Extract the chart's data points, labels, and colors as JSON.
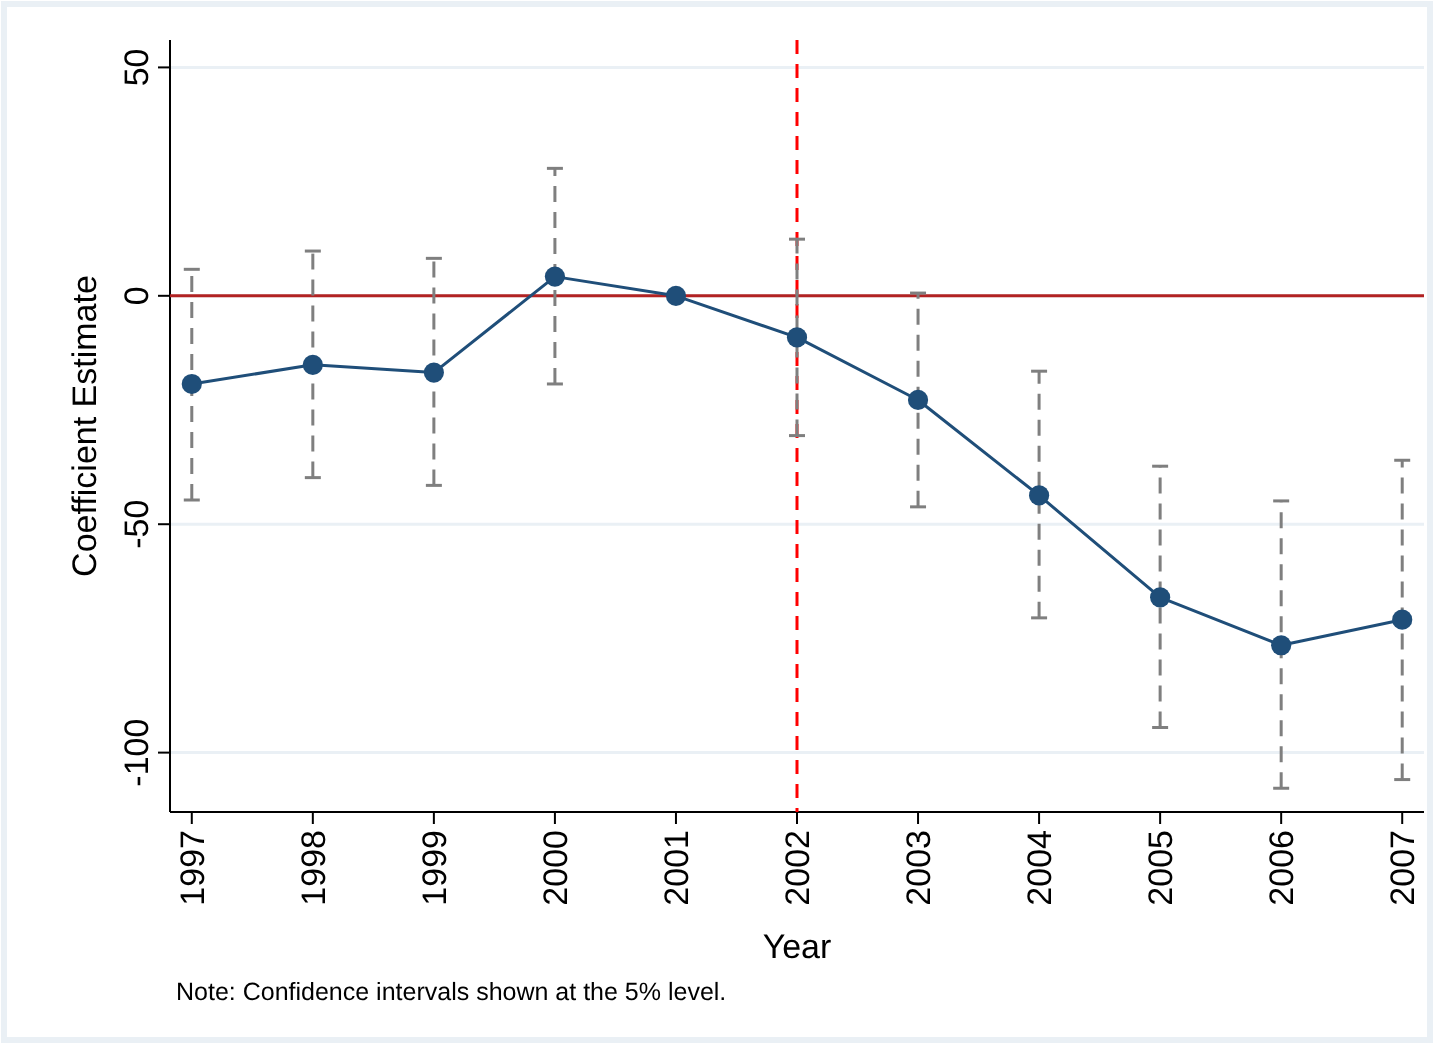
{
  "chart_data": {
    "type": "line",
    "xlabel": "Year",
    "ylabel": "Coefficient Estimate",
    "x": [
      1997,
      1998,
      1999,
      2000,
      2001,
      2002,
      2003,
      2004,
      2005,
      2006,
      2007
    ],
    "series": [
      {
        "color": "#1f4e79",
        "values": [
          -19.3,
          -15.1,
          -16.8,
          4.2,
          0,
          -9.1,
          -22.8,
          -43.7,
          -66,
          -76.5,
          -70.9
        ],
        "errors": [
          [
            -44.7,
            5.8
          ],
          [
            -39.8,
            9.8
          ],
          [
            -41.5,
            8.2
          ],
          [
            -19.3,
            27.9
          ],
          null,
          [
            -30.6,
            12.4
          ],
          [
            -46.2,
            0.6
          ],
          [
            -70.5,
            -16.5
          ],
          [
            -94.5,
            -37.3
          ],
          [
            -107.8,
            -44.9
          ],
          [
            -105.9,
            -36
          ]
        ]
      }
    ],
    "xlim": [
      1996.82,
      2007.18
    ],
    "xticks": [
      1997,
      1998,
      1999,
      2000,
      2001,
      2002,
      2003,
      2004,
      2005,
      2006,
      2007
    ],
    "ylim": [
      -113,
      56
    ],
    "yticks": [
      -100,
      -50,
      0,
      50
    ],
    "grid": "y",
    "marker": "circle",
    "line_style": "solid",
    "ref_lines": [
      {
        "axis": "y",
        "value": 0,
        "color": "#b22222",
        "line_style": "solid"
      },
      {
        "axis": "x",
        "value": 2002,
        "color": "#ff0000",
        "line_style": "dashed"
      }
    ],
    "annotations": [
      "Note: Confidence intervals shown at the 5% level."
    ]
  }
}
